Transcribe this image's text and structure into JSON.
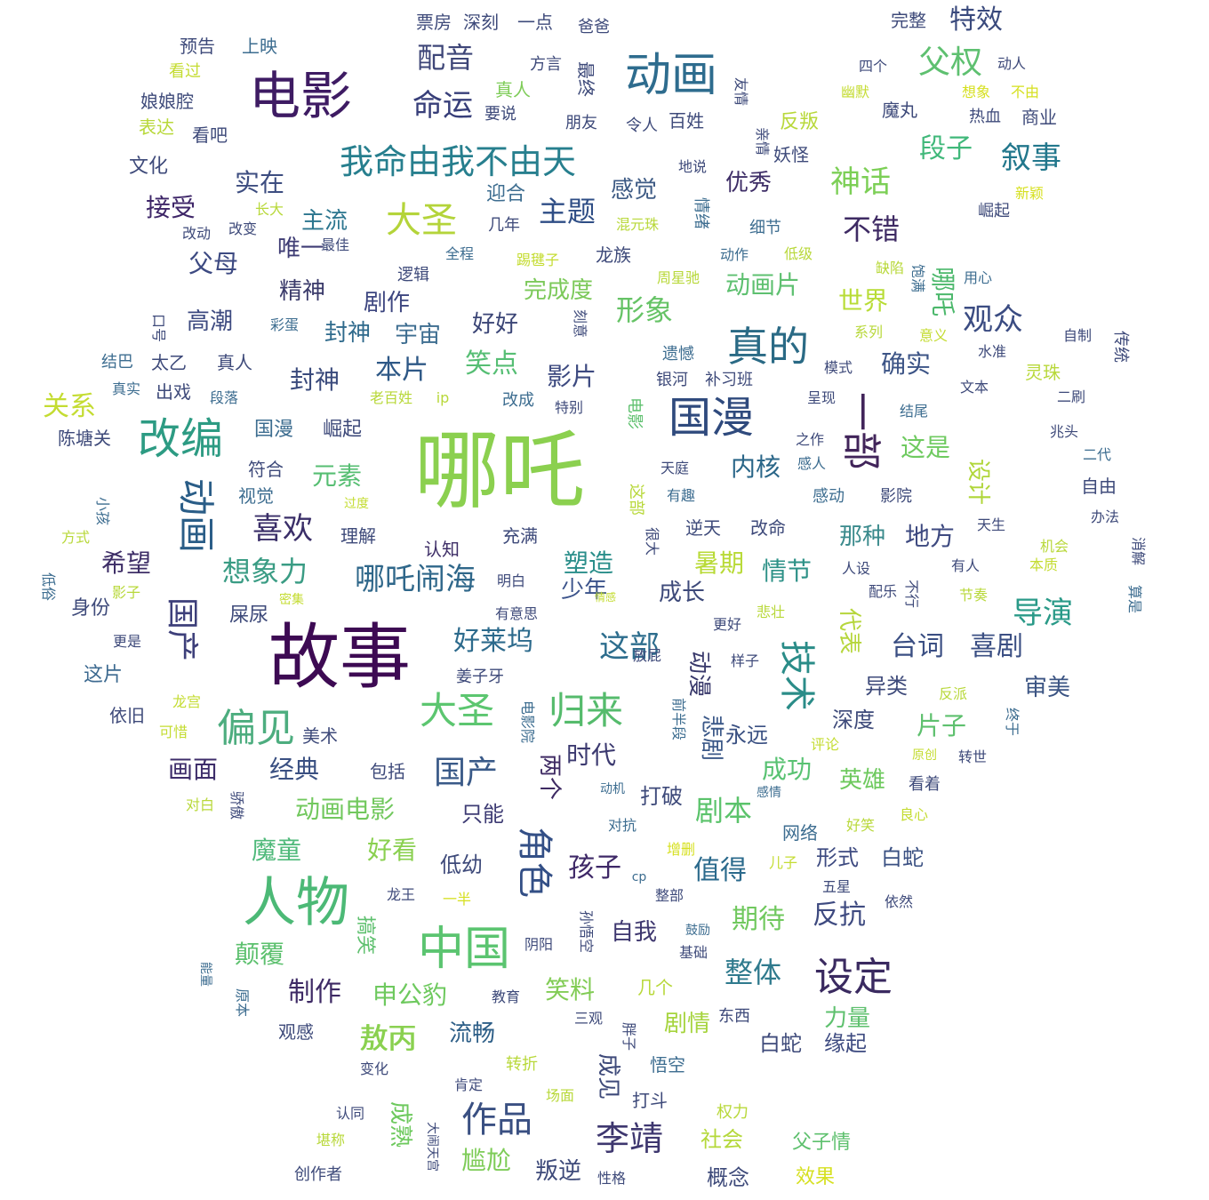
{
  "colors": {
    "background": "#ffffff",
    "palette_viridis": [
      "#440154",
      "#472c7a",
      "#3b518b",
      "#2c718e",
      "#21908d",
      "#27ad81",
      "#5cc863",
      "#aadc32",
      "#d5e21a"
    ]
  },
  "words": [
    {
      "text": "哪吒",
      "color": "#8bd04f"
    },
    {
      "text": "故事",
      "color": "#3d0a53"
    },
    {
      "text": "电影",
      "color": "#3e1b63"
    },
    {
      "text": "人物",
      "color": "#4cb976"
    },
    {
      "text": "动画",
      "color": "#2e6c8e"
    },
    {
      "text": "我命由我不由天",
      "color": "#277f8e"
    },
    {
      "text": "改编",
      "color": "#2d9b83"
    },
    {
      "text": "国漫",
      "color": "#2f4a7d"
    },
    {
      "text": "一部",
      "color": "#41245a"
    },
    {
      "text": "中国",
      "color": "#5bc470"
    },
    {
      "text": "真的",
      "color": "#2a6a85"
    },
    {
      "text": "大圣",
      "color": "#b4d43a"
    },
    {
      "text": "偏见",
      "color": "#4dad7f"
    },
    {
      "text": "角色",
      "color": "#334f86"
    },
    {
      "text": "设定",
      "color": "#3a2a60"
    },
    {
      "text": "技术",
      "color": "#2a8c88"
    },
    {
      "text": "大圣",
      "color": "#5cc670"
    },
    {
      "text": "归来",
      "color": "#55bb6c"
    },
    {
      "text": "父权",
      "color": "#5ec070"
    },
    {
      "text": "动画",
      "color": "#2a5d87"
    },
    {
      "text": "命运",
      "color": "#373e79"
    },
    {
      "text": "配音",
      "color": "#3e4678"
    },
    {
      "text": "喜欢",
      "color": "#3a2e68"
    },
    {
      "text": "哪吒闹海",
      "color": "#2f678a"
    },
    {
      "text": "神话",
      "color": "#7ccf56"
    },
    {
      "text": "叙事",
      "color": "#22778c"
    },
    {
      "text": "观众",
      "color": "#3b4c82"
    },
    {
      "text": "导演",
      "color": "#2a9a88"
    },
    {
      "text": "国产",
      "color": "#3d3f7a"
    },
    {
      "text": "国产",
      "color": "#3a5a88"
    },
    {
      "text": "作品",
      "color": "#3a5082"
    },
    {
      "text": "李靖",
      "color": "#3e376f"
    },
    {
      "text": "敖丙",
      "color": "#8bd34e"
    },
    {
      "text": "主题",
      "color": "#2e4d85"
    },
    {
      "text": "不错",
      "color": "#3e2a63"
    },
    {
      "text": "形象",
      "color": "#66c366"
    },
    {
      "text": "这部",
      "color": "#2d6d8d"
    },
    {
      "text": "想象力",
      "color": "#3a9c84"
    },
    {
      "text": "好莱坞",
      "color": "#2c6a8c"
    },
    {
      "text": "台词",
      "color": "#3b4f83"
    },
    {
      "text": "喜剧",
      "color": "#3b4f83"
    },
    {
      "text": "整体",
      "color": "#2f7a8d"
    },
    {
      "text": "制作",
      "color": "#3e2a65"
    },
    {
      "text": "孩子",
      "color": "#3e2867"
    },
    {
      "text": "值得",
      "color": "#2b6a8c"
    },
    {
      "text": "反抗",
      "color": "#3e4a80"
    },
    {
      "text": "剧本",
      "color": "#5bc36b"
    },
    {
      "text": "期待",
      "color": "#70c85e"
    },
    {
      "text": "段子",
      "color": "#40b87a"
    },
    {
      "text": "特效",
      "color": "#3a4a7d"
    },
    {
      "text": "感觉",
      "color": "#3d5a84"
    },
    {
      "text": "优秀",
      "color": "#3e2e67"
    },
    {
      "text": "接受",
      "color": "#3e2668"
    },
    {
      "text": "实在",
      "color": "#3d4d80"
    },
    {
      "text": "父母",
      "color": "#3d4a82"
    },
    {
      "text": "主流",
      "color": "#2b758e"
    },
    {
      "text": "唯一",
      "color": "#3e3c74"
    },
    {
      "text": "精神",
      "color": "#3a3a6a"
    },
    {
      "text": "剧作",
      "color": "#3d4680"
    },
    {
      "text": "高潮",
      "color": "#3d4a80"
    },
    {
      "text": "封神",
      "color": "#2f6a8c"
    },
    {
      "text": "封神",
      "color": "#3a4a7c"
    },
    {
      "text": "宇宙",
      "color": "#3d6d90"
    },
    {
      "text": "好好",
      "color": "#3b4576"
    },
    {
      "text": "本片",
      "color": "#2e5886"
    },
    {
      "text": "笑点",
      "color": "#56be74"
    },
    {
      "text": "影片",
      "color": "#3d4a80"
    },
    {
      "text": "动画片",
      "color": "#5ec070"
    },
    {
      "text": "完成度",
      "color": "#7cc95a"
    },
    {
      "text": "世界",
      "color": "#b8dc36"
    },
    {
      "text": "哪吒",
      "color": "#4cb86c"
    },
    {
      "text": "确实",
      "color": "#3c5486"
    },
    {
      "text": "关系",
      "color": "#c4dc32"
    },
    {
      "text": "元素",
      "color": "#56be72"
    },
    {
      "text": "内核",
      "color": "#2a6688"
    },
    {
      "text": "这是",
      "color": "#6fca60"
    },
    {
      "text": "设计",
      "color": "#b0d63a"
    },
    {
      "text": "地方",
      "color": "#3e4a80"
    },
    {
      "text": "那种",
      "color": "#3a8a8c"
    },
    {
      "text": "情节",
      "color": "#2d9187"
    },
    {
      "text": "暑期",
      "color": "#b8da36"
    },
    {
      "text": "塑造",
      "color": "#2a8e8a"
    },
    {
      "text": "少年",
      "color": "#3a528a"
    },
    {
      "text": "成长",
      "color": "#3e4a7a"
    },
    {
      "text": "代表",
      "color": "#b6d63c"
    },
    {
      "text": "动漫",
      "color": "#3a3a6c"
    },
    {
      "text": "悲剧",
      "color": "#3b5888"
    },
    {
      "text": "时代",
      "color": "#3c3a70"
    },
    {
      "text": "两个",
      "color": "#3e2a63"
    },
    {
      "text": "成功",
      "color": "#58c272"
    },
    {
      "text": "英雄",
      "color": "#6ec95e"
    },
    {
      "text": "片子",
      "color": "#5ec06e"
    },
    {
      "text": "审美",
      "color": "#3b5483"
    },
    {
      "text": "异类",
      "color": "#3e4a7a"
    },
    {
      "text": "深度",
      "color": "#3e4a7a"
    },
    {
      "text": "永远",
      "color": "#3a5082"
    },
    {
      "text": "经典",
      "color": "#3a5082"
    },
    {
      "text": "画面",
      "color": "#3d2d6a"
    },
    {
      "text": "动画电影",
      "color": "#72c85e"
    },
    {
      "text": "好看",
      "color": "#8ad050"
    },
    {
      "text": "魔童",
      "color": "#4fb97a"
    },
    {
      "text": "颠覆",
      "color": "#5cc06e"
    },
    {
      "text": "申公豹",
      "color": "#6ec95e"
    },
    {
      "text": "敖丙",
      "color": "#8ad050"
    },
    {
      "text": "流畅",
      "color": "#2e5f88"
    },
    {
      "text": "笑料",
      "color": "#82cc56"
    },
    {
      "text": "剧情",
      "color": "#a6d43e"
    },
    {
      "text": "力量",
      "color": "#5ec06e"
    },
    {
      "text": "缘起",
      "color": "#3d4a80"
    },
    {
      "text": "白蛇",
      "color": "#3a5082"
    },
    {
      "text": "白蛇",
      "color": "#3e4a7a"
    },
    {
      "text": "形式",
      "color": "#3d4a80"
    },
    {
      "text": "自我",
      "color": "#3e376f"
    },
    {
      "text": "低幼",
      "color": "#3e4a7a"
    },
    {
      "text": "只能",
      "color": "#3e3c74"
    },
    {
      "text": "打破",
      "color": "#3e4a7a"
    },
    {
      "text": "尴尬",
      "color": "#7ecc58"
    },
    {
      "text": "叛逆",
      "color": "#3e4a7a"
    },
    {
      "text": "成熟",
      "color": "#6ec95e"
    },
    {
      "text": "成见",
      "color": "#3e4a7a"
    },
    {
      "text": "社会",
      "color": "#b4d83a"
    },
    {
      "text": "概念",
      "color": "#3e4a7a"
    },
    {
      "text": "效果",
      "color": "#d6e020"
    },
    {
      "text": "父子情",
      "color": "#5ec06e"
    },
    {
      "text": "希望",
      "color": "#3e2e67"
    },
    {
      "text": "身份",
      "color": "#3e4a7a"
    },
    {
      "text": "屎尿",
      "color": "#3e4a7a"
    },
    {
      "text": "这片",
      "color": "#3d6a90"
    },
    {
      "text": "依旧",
      "color": "#3e4a7a"
    },
    {
      "text": "美术",
      "color": "#3e4a7a"
    },
    {
      "text": "包括",
      "color": "#3e4a7a"
    },
    {
      "text": "符合",
      "color": "#3e4a7a"
    },
    {
      "text": "视觉",
      "color": "#3d6d90"
    },
    {
      "text": "理解",
      "color": "#3e4a7a"
    },
    {
      "text": "认知",
      "color": "#3e2e67"
    },
    {
      "text": "充满",
      "color": "#3e4a7a"
    },
    {
      "text": "国漫",
      "color": "#3d6d90"
    },
    {
      "text": "崛起",
      "color": "#3e4a7a"
    },
    {
      "text": "陈塘关",
      "color": "#3e4a7a"
    },
    {
      "text": "文化",
      "color": "#3e4a7a"
    },
    {
      "text": "娘娘腔",
      "color": "#3e4a7a"
    },
    {
      "text": "表达",
      "color": "#b8d83a"
    },
    {
      "text": "看吧",
      "color": "#3e4a7a"
    },
    {
      "text": "预告",
      "color": "#3e4a7a"
    },
    {
      "text": "上映",
      "color": "#3d6d90"
    },
    {
      "text": "看过",
      "color": "#c4dc32"
    },
    {
      "text": "票房",
      "color": "#3e4a7a"
    },
    {
      "text": "深刻",
      "color": "#3e4a7a"
    },
    {
      "text": "一点",
      "color": "#3e4a7a"
    },
    {
      "text": "爸爸",
      "color": "#3e4a7a"
    },
    {
      "text": "完整",
      "color": "#3e4a7a"
    },
    {
      "text": "四个",
      "color": "#3e4a7a"
    },
    {
      "text": "动人",
      "color": "#3e4a7a"
    },
    {
      "text": "幽默",
      "color": "#c4dc32"
    },
    {
      "text": "想象",
      "color": "#d6e020"
    },
    {
      "text": "不由",
      "color": "#d6e020"
    },
    {
      "text": "热血",
      "color": "#3e4a7a"
    },
    {
      "text": "商业",
      "color": "#3e4a7a"
    },
    {
      "text": "魔丸",
      "color": "#3e4a7a"
    },
    {
      "text": "反叛",
      "color": "#b8d83a"
    },
    {
      "text": "妖怪",
      "color": "#3e4a7a"
    },
    {
      "text": "百姓",
      "color": "#3e4a7a"
    },
    {
      "text": "令人",
      "color": "#3e4a7a"
    },
    {
      "text": "朋友",
      "color": "#3e4a7a"
    },
    {
      "text": "真人",
      "color": "#7ecc58"
    },
    {
      "text": "要说",
      "color": "#3e4a7a"
    },
    {
      "text": "方言",
      "color": "#3e4a7a"
    },
    {
      "text": "最终",
      "color": "#3e4a7a"
    },
    {
      "text": "友情",
      "color": "#3e4a7a"
    },
    {
      "text": "地说",
      "color": "#3e4a7a"
    },
    {
      "text": "亲情",
      "color": "#3e4a7a"
    },
    {
      "text": "迎合",
      "color": "#3d6d90"
    },
    {
      "text": "几年",
      "color": "#3e4a7a"
    },
    {
      "text": "混元珠",
      "color": "#b8d83a"
    },
    {
      "text": "情绪",
      "color": "#3d6d90"
    },
    {
      "text": "细节",
      "color": "#3d6d90"
    },
    {
      "text": "动作",
      "color": "#3d6d90"
    },
    {
      "text": "低级",
      "color": "#b8d83a"
    },
    {
      "text": "龙族",
      "color": "#3e4a7a"
    },
    {
      "text": "周星驰",
      "color": "#b8d83a"
    },
    {
      "text": "缺陷",
      "color": "#b8d83a"
    },
    {
      "text": "饱满",
      "color": "#3d6d90"
    },
    {
      "text": "用心",
      "color": "#3d6d90"
    },
    {
      "text": "崛起",
      "color": "#3e4a7a"
    },
    {
      "text": "新颖",
      "color": "#d6e020"
    },
    {
      "text": "长大",
      "color": "#b8d83a"
    },
    {
      "text": "改动",
      "color": "#3e4a7a"
    },
    {
      "text": "改变",
      "color": "#3e4a7a"
    },
    {
      "text": "最佳",
      "color": "#3e4a7a"
    },
    {
      "text": "全程",
      "color": "#3d6d90"
    },
    {
      "text": "踢毽子",
      "color": "#c4dc32"
    },
    {
      "text": "逻辑",
      "color": "#3e4a7a"
    },
    {
      "text": "刻意",
      "color": "#3e4a7a"
    },
    {
      "text": "彩蛋",
      "color": "#3d6d90"
    },
    {
      "text": "口号",
      "color": "#3e4a7a"
    },
    {
      "text": "结巴",
      "color": "#3d6d90"
    },
    {
      "text": "太乙",
      "color": "#3e4a7a"
    },
    {
      "text": "真人",
      "color": "#3e4a7a"
    },
    {
      "text": "真实",
      "color": "#3d6d90"
    },
    {
      "text": "出戏",
      "color": "#3e4a7a"
    },
    {
      "text": "段落",
      "color": "#3d6d90"
    },
    {
      "text": "老百姓",
      "color": "#b8d83a"
    },
    {
      "text": "ip",
      "color": "#b8d83a"
    },
    {
      "text": "改成",
      "color": "#3d6d90"
    },
    {
      "text": "特别",
      "color": "#3e4a7a"
    },
    {
      "text": "遗憾",
      "color": "#3d6d90"
    },
    {
      "text": "银河",
      "color": "#3e4a7a"
    },
    {
      "text": "补习班",
      "color": "#3e4a7a"
    },
    {
      "text": "模式",
      "color": "#3e4a7a"
    },
    {
      "text": "系列",
      "color": "#b8d83a"
    },
    {
      "text": "意义",
      "color": "#c4dc32"
    },
    {
      "text": "水准",
      "color": "#3e4a7a"
    },
    {
      "text": "自制",
      "color": "#3e4a7a"
    },
    {
      "text": "传统",
      "color": "#3e4a7a"
    },
    {
      "text": "文本",
      "color": "#3e4a7a"
    },
    {
      "text": "灵珠",
      "color": "#b8d83a"
    },
    {
      "text": "二刷",
      "color": "#3e4a7a"
    },
    {
      "text": "呈现",
      "color": "#3e4a7a"
    },
    {
      "text": "结尾",
      "color": "#3d6d90"
    },
    {
      "text": "兆头",
      "color": "#3e4a7a"
    },
    {
      "text": "电影",
      "color": "#5ec06e"
    },
    {
      "text": "之作",
      "color": "#3e4a7a"
    },
    {
      "text": "感人",
      "color": "#3d6d90"
    },
    {
      "text": "天庭",
      "color": "#3e4a7a"
    },
    {
      "text": "有趣",
      "color": "#3d6d90"
    },
    {
      "text": "感动",
      "color": "#3d6d90"
    },
    {
      "text": "影院",
      "color": "#3e4a7a"
    },
    {
      "text": "二代",
      "color": "#3d6d90"
    },
    {
      "text": "自由",
      "color": "#3e4a7a"
    },
    {
      "text": "这部",
      "color": "#b8d83a"
    },
    {
      "text": "逆天",
      "color": "#3e4a7a"
    },
    {
      "text": "改命",
      "color": "#3e4a7a"
    },
    {
      "text": "很大",
      "color": "#3e4a7a"
    },
    {
      "text": "天生",
      "color": "#3e4a7a"
    },
    {
      "text": "办法",
      "color": "#3e4a7a"
    },
    {
      "text": "机会",
      "color": "#b8d83a"
    },
    {
      "text": "本质",
      "color": "#c4dc32"
    },
    {
      "text": "消解",
      "color": "#3e4a7a"
    },
    {
      "text": "有人",
      "color": "#3e4a7a"
    },
    {
      "text": "不行",
      "color": "#3e4a7a"
    },
    {
      "text": "人设",
      "color": "#3e4a7a"
    },
    {
      "text": "配乐",
      "color": "#3e4a7a"
    },
    {
      "text": "节奏",
      "color": "#b8d83a"
    },
    {
      "text": "算是",
      "color": "#3d6d90"
    },
    {
      "text": "明白",
      "color": "#3e4a7a"
    },
    {
      "text": "有意思",
      "color": "#3e4a7a"
    },
    {
      "text": "情感",
      "color": "#c4dc32"
    },
    {
      "text": "悲壮",
      "color": "#b8d83a"
    },
    {
      "text": "更好",
      "color": "#3e4a7a"
    },
    {
      "text": "放屁",
      "color": "#3e4a7a"
    },
    {
      "text": "样子",
      "color": "#3e4a7a"
    },
    {
      "text": "前半段",
      "color": "#3d6d90"
    },
    {
      "text": "姜子牙",
      "color": "#3e4a7a"
    },
    {
      "text": "电影院",
      "color": "#3d6d90"
    },
    {
      "text": "龙宫",
      "color": "#c4dc32"
    },
    {
      "text": "可惜",
      "color": "#c4dc32"
    },
    {
      "text": "反派",
      "color": "#b8d83a"
    },
    {
      "text": "评论",
      "color": "#c4dc32"
    },
    {
      "text": "原创",
      "color": "#c4dc32"
    },
    {
      "text": "转世",
      "color": "#3e4a7a"
    },
    {
      "text": "终于",
      "color": "#3d6d90"
    },
    {
      "text": "看着",
      "color": "#3e4a7a"
    },
    {
      "text": "感情",
      "color": "#3d6d90"
    },
    {
      "text": "动机",
      "color": "#3d6d90"
    },
    {
      "text": "对白",
      "color": "#b8d83a"
    },
    {
      "text": "骄傲",
      "color": "#3e4a7a"
    },
    {
      "text": "网络",
      "color": "#3d6d90"
    },
    {
      "text": "好笑",
      "color": "#b8d83a"
    },
    {
      "text": "良心",
      "color": "#c4dc32"
    },
    {
      "text": "对抗",
      "color": "#3d6d90"
    },
    {
      "text": "增删",
      "color": "#d6e020"
    },
    {
      "text": "儿子",
      "color": "#c4dc32"
    },
    {
      "text": "五星",
      "color": "#3e4a7a"
    },
    {
      "text": "依然",
      "color": "#3e4a7a"
    },
    {
      "text": "cp",
      "color": "#3d6d90"
    },
    {
      "text": "整部",
      "color": "#3e4a7a"
    },
    {
      "text": "龙王",
      "color": "#3e4a7a"
    },
    {
      "text": "一半",
      "color": "#d6e020"
    },
    {
      "text": "搞笑",
      "color": "#5ec06e"
    },
    {
      "text": "孙悟空",
      "color": "#3e4a7a"
    },
    {
      "text": "阴阳",
      "color": "#3e4a7a"
    },
    {
      "text": "鼓励",
      "color": "#3d6d90"
    },
    {
      "text": "基础",
      "color": "#3e4a7a"
    },
    {
      "text": "能量",
      "color": "#3d6d90"
    },
    {
      "text": "原本",
      "color": "#3d6d90"
    },
    {
      "text": "教育",
      "color": "#3e4a7a"
    },
    {
      "text": "几个",
      "color": "#b8d83a"
    },
    {
      "text": "东西",
      "color": "#3e4a7a"
    },
    {
      "text": "三观",
      "color": "#3e4a7a"
    },
    {
      "text": "胖子",
      "color": "#3e4a7a"
    },
    {
      "text": "悟空",
      "color": "#3d6d90"
    },
    {
      "text": "观感",
      "color": "#3e4a7a"
    },
    {
      "text": "转折",
      "color": "#b8d83a"
    },
    {
      "text": "变化",
      "color": "#3e4a7a"
    },
    {
      "text": "肯定",
      "color": "#3e4a7a"
    },
    {
      "text": "场面",
      "color": "#b8d83a"
    },
    {
      "text": "打斗",
      "color": "#3e4a7a"
    },
    {
      "text": "权力",
      "color": "#b8d83a"
    },
    {
      "text": "认同",
      "color": "#3e4a7a"
    },
    {
      "text": "大闹天宫",
      "color": "#3e4a7a"
    },
    {
      "text": "堪称",
      "color": "#b8d83a"
    },
    {
      "text": "创作者",
      "color": "#3e4a7a"
    },
    {
      "text": "性格",
      "color": "#3e4a7a"
    },
    {
      "text": "小孩",
      "color": "#3d6d90"
    },
    {
      "text": "方式",
      "color": "#b8d83a"
    },
    {
      "text": "低俗",
      "color": "#3d6d90"
    },
    {
      "text": "影子",
      "color": "#b8d83a"
    },
    {
      "text": "密集",
      "color": "#c4dc32"
    },
    {
      "text": "更是",
      "color": "#3e4a7a"
    },
    {
      "text": "过度",
      "color": "#c4dc32"
    }
  ]
}
